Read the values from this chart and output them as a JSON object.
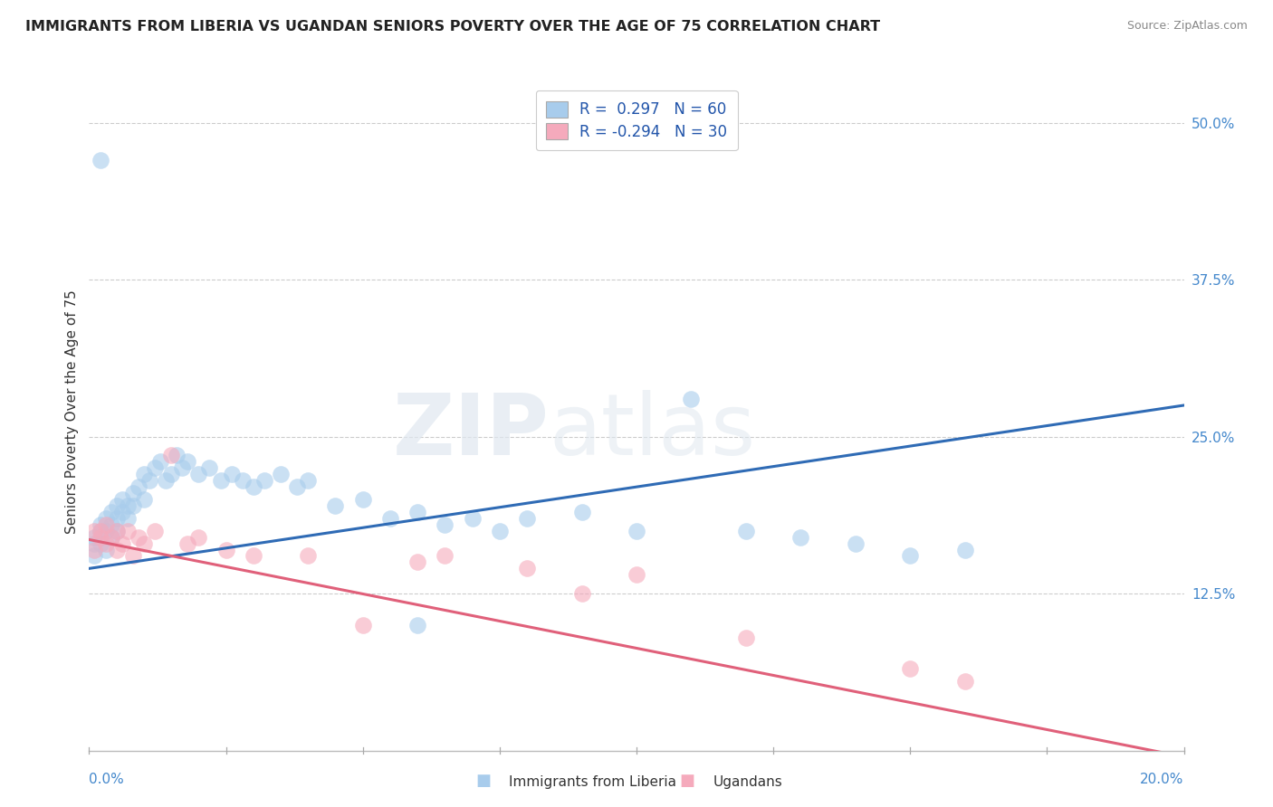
{
  "title": "IMMIGRANTS FROM LIBERIA VS UGANDAN SENIORS POVERTY OVER THE AGE OF 75 CORRELATION CHART",
  "source": "Source: ZipAtlas.com",
  "ylabel": "Seniors Poverty Over the Age of 75",
  "xmin": 0.0,
  "xmax": 0.2,
  "ymin": 0.0,
  "ymax": 0.54,
  "r_blue": 0.297,
  "n_blue": 60,
  "r_pink": -0.294,
  "n_pink": 30,
  "blue_color": "#A8CCEC",
  "blue_line_color": "#2F6BB5",
  "pink_color": "#F5AABC",
  "pink_line_color": "#E0607A",
  "legend_label_blue": "Immigrants from Liberia",
  "legend_label_pink": "Ugandans",
  "watermark_zip": "ZIP",
  "watermark_atlas": "atlas",
  "background_color": "#ffffff",
  "grid_color": "#cccccc",
  "blue_trend_y0": 0.145,
  "blue_trend_y1": 0.275,
  "pink_trend_y0": 0.168,
  "pink_trend_y1": -0.005,
  "blue_x": [
    0.001,
    0.001,
    0.001,
    0.002,
    0.002,
    0.002,
    0.003,
    0.003,
    0.003,
    0.004,
    0.004,
    0.004,
    0.005,
    0.005,
    0.005,
    0.006,
    0.006,
    0.007,
    0.007,
    0.008,
    0.008,
    0.009,
    0.01,
    0.01,
    0.011,
    0.012,
    0.013,
    0.014,
    0.015,
    0.016,
    0.017,
    0.018,
    0.02,
    0.022,
    0.024,
    0.026,
    0.028,
    0.03,
    0.032,
    0.035,
    0.038,
    0.04,
    0.045,
    0.05,
    0.055,
    0.06,
    0.065,
    0.07,
    0.075,
    0.08,
    0.09,
    0.1,
    0.11,
    0.12,
    0.13,
    0.14,
    0.15,
    0.16,
    0.002,
    0.06
  ],
  "blue_y": [
    0.165,
    0.17,
    0.155,
    0.175,
    0.18,
    0.165,
    0.185,
    0.175,
    0.16,
    0.19,
    0.18,
    0.17,
    0.195,
    0.185,
    0.175,
    0.2,
    0.19,
    0.195,
    0.185,
    0.205,
    0.195,
    0.21,
    0.2,
    0.22,
    0.215,
    0.225,
    0.23,
    0.215,
    0.22,
    0.235,
    0.225,
    0.23,
    0.22,
    0.225,
    0.215,
    0.22,
    0.215,
    0.21,
    0.215,
    0.22,
    0.21,
    0.215,
    0.195,
    0.2,
    0.185,
    0.19,
    0.18,
    0.185,
    0.175,
    0.185,
    0.19,
    0.175,
    0.28,
    0.175,
    0.17,
    0.165,
    0.155,
    0.16,
    0.47,
    0.1
  ],
  "pink_x": [
    0.001,
    0.001,
    0.002,
    0.002,
    0.003,
    0.003,
    0.004,
    0.005,
    0.005,
    0.006,
    0.007,
    0.008,
    0.009,
    0.01,
    0.012,
    0.015,
    0.018,
    0.02,
    0.025,
    0.03,
    0.04,
    0.05,
    0.06,
    0.065,
    0.08,
    0.09,
    0.1,
    0.12,
    0.15,
    0.16
  ],
  "pink_y": [
    0.175,
    0.16,
    0.17,
    0.175,
    0.165,
    0.18,
    0.17,
    0.175,
    0.16,
    0.165,
    0.175,
    0.155,
    0.17,
    0.165,
    0.175,
    0.235,
    0.165,
    0.17,
    0.16,
    0.155,
    0.155,
    0.1,
    0.15,
    0.155,
    0.145,
    0.125,
    0.14,
    0.09,
    0.065,
    0.055
  ]
}
